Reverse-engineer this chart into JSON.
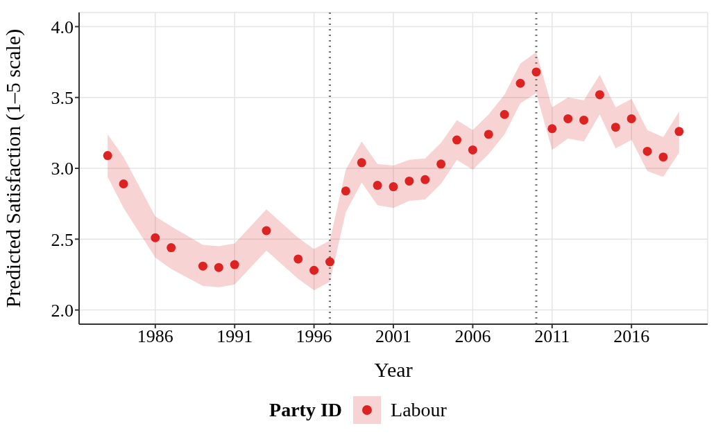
{
  "chart_data": {
    "type": "scatter",
    "xlabel": "Year",
    "ylabel": "Predicted Satisfaction (1–5 scale)",
    "legend_title": "Party ID",
    "x": [
      1983,
      1984,
      1986,
      1987,
      1989,
      1990,
      1991,
      1993,
      1995,
      1996,
      1997,
      1998,
      1999,
      2000,
      2001,
      2002,
      2003,
      2004,
      2005,
      2006,
      2007,
      2008,
      2009,
      2010,
      2011,
      2012,
      2013,
      2014,
      2015,
      2016,
      2017,
      2018,
      2019
    ],
    "series": [
      {
        "name": "Labour",
        "color": "#dd2222",
        "values": [
          3.09,
          2.89,
          2.51,
          2.44,
          2.31,
          2.3,
          2.32,
          2.56,
          2.36,
          2.28,
          2.34,
          2.84,
          3.04,
          2.88,
          2.87,
          2.91,
          2.92,
          3.03,
          3.2,
          3.13,
          3.24,
          3.38,
          3.6,
          3.68,
          3.28,
          3.35,
          3.34,
          3.52,
          3.29,
          3.35,
          3.12,
          3.08,
          3.26
        ],
        "lower": [
          2.94,
          2.72,
          2.37,
          2.29,
          2.17,
          2.16,
          2.18,
          2.42,
          2.22,
          2.14,
          2.2,
          2.69,
          2.9,
          2.74,
          2.72,
          2.77,
          2.78,
          2.89,
          3.06,
          2.99,
          3.1,
          3.24,
          3.46,
          3.53,
          3.13,
          3.21,
          3.19,
          3.38,
          3.14,
          3.2,
          2.98,
          2.94,
          3.11
        ],
        "upper": [
          3.24,
          3.08,
          2.66,
          2.59,
          2.46,
          2.45,
          2.47,
          2.71,
          2.51,
          2.43,
          2.49,
          2.99,
          3.19,
          3.03,
          3.02,
          3.06,
          3.07,
          3.18,
          3.34,
          3.27,
          3.38,
          3.52,
          3.74,
          3.82,
          3.43,
          3.5,
          3.48,
          3.66,
          3.43,
          3.49,
          3.27,
          3.22,
          3.4
        ]
      }
    ],
    "xlim": [
      1981.2,
      2020.8
    ],
    "xticks": [
      1986,
      1991,
      1996,
      2001,
      2006,
      2011,
      2016
    ],
    "ylim": [
      1.9,
      4.1
    ],
    "yticks": [
      {
        "value": 2,
        "label": "2.0"
      },
      {
        "value": 2.5,
        "label": "2.5"
      },
      {
        "value": 3,
        "label": "3.0"
      },
      {
        "value": 3.5,
        "label": "3.5"
      },
      {
        "value": 4,
        "label": "4.0"
      }
    ],
    "ref_lines": [
      {
        "axis": "x",
        "value": 1997,
        "color": "#777777",
        "line_style": "dotted"
      },
      {
        "axis": "x",
        "value": 2010,
        "color": "#777777",
        "line_style": "dotted"
      }
    ],
    "grid": true,
    "legend": "bottom",
    "marker": "circle"
  }
}
